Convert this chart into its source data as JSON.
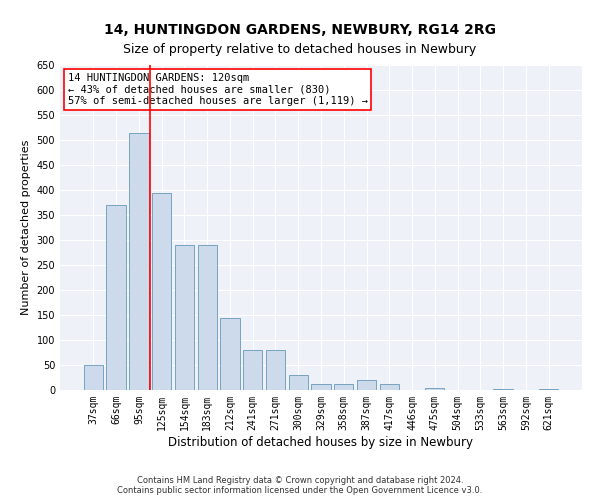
{
  "title": "14, HUNTINGDON GARDENS, NEWBURY, RG14 2RG",
  "subtitle": "Size of property relative to detached houses in Newbury",
  "xlabel": "Distribution of detached houses by size in Newbury",
  "ylabel": "Number of detached properties",
  "categories": [
    "37sqm",
    "66sqm",
    "95sqm",
    "125sqm",
    "154sqm",
    "183sqm",
    "212sqm",
    "241sqm",
    "271sqm",
    "300sqm",
    "329sqm",
    "358sqm",
    "387sqm",
    "417sqm",
    "446sqm",
    "475sqm",
    "504sqm",
    "533sqm",
    "563sqm",
    "592sqm",
    "621sqm"
  ],
  "values": [
    50,
    370,
    515,
    395,
    290,
    290,
    145,
    80,
    80,
    30,
    12,
    12,
    20,
    12,
    0,
    5,
    0,
    0,
    3,
    0,
    2
  ],
  "bar_color": "#ccdaeb",
  "bar_edge_color": "#6699bb",
  "vline_x": 2.5,
  "vline_color": "red",
  "annotation_text": "14 HUNTINGDON GARDENS: 120sqm\n← 43% of detached houses are smaller (830)\n57% of semi-detached houses are larger (1,119) →",
  "annotation_box_color": "white",
  "annotation_box_edge_color": "red",
  "ylim": [
    0,
    650
  ],
  "yticks": [
    0,
    50,
    100,
    150,
    200,
    250,
    300,
    350,
    400,
    450,
    500,
    550,
    600,
    650
  ],
  "background_color": "#eef2f8",
  "grid_color": "white",
  "footer": "Contains HM Land Registry data © Crown copyright and database right 2024.\nContains public sector information licensed under the Open Government Licence v3.0.",
  "title_fontsize": 10,
  "subtitle_fontsize": 9,
  "xlabel_fontsize": 8.5,
  "ylabel_fontsize": 8,
  "tick_fontsize": 7,
  "annotation_fontsize": 7.5,
  "footer_fontsize": 6
}
